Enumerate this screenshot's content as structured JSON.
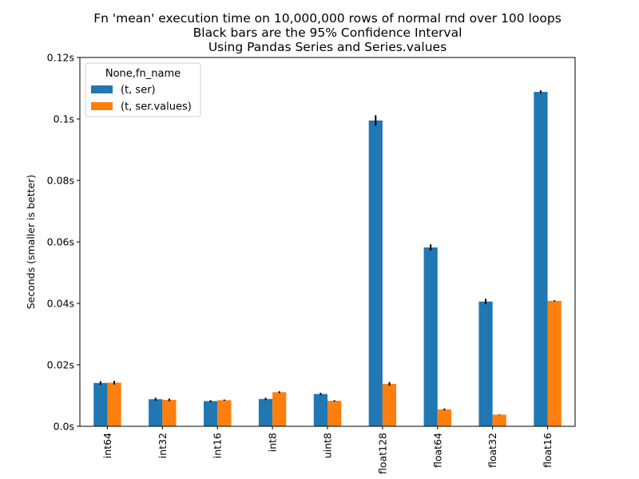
{
  "chart_data": {
    "type": "bar",
    "title_lines": [
      "Fn 'mean' execution time on 10,000,000 rows of normal rnd over 100 loops",
      "Black bars are the 95% Confidence Interval",
      "Using Pandas Series and Series.values"
    ],
    "xlabel": "",
    "ylabel": "Seconds (smaller is better)",
    "ylim": [
      0,
      0.12
    ],
    "yticks": [
      {
        "value": 0,
        "label": "0.0s"
      },
      {
        "value": 0.02,
        "label": "0.02s"
      },
      {
        "value": 0.04,
        "label": "0.04s"
      },
      {
        "value": 0.06,
        "label": "0.06s"
      },
      {
        "value": 0.08,
        "label": "0.08s"
      },
      {
        "value": 0.1,
        "label": "0.1s"
      },
      {
        "value": 0.12,
        "label": "0.12s"
      }
    ],
    "categories": [
      "int64",
      "int32",
      "int16",
      "int8",
      "uint8",
      "float128",
      "float64",
      "float32",
      "float16"
    ],
    "legend": {
      "title": "None,fn_name",
      "position": "top-left"
    },
    "grid": false,
    "series": [
      {
        "name": "(t, ser)",
        "color": "#1f77b4",
        "values": [
          0.0141,
          0.0088,
          0.0082,
          0.0089,
          0.0105,
          0.0995,
          0.0582,
          0.0406,
          0.1088
        ],
        "errors": [
          0.0006,
          0.0005,
          0.0003,
          0.0004,
          0.0004,
          0.0017,
          0.001,
          0.0009,
          0.0005
        ]
      },
      {
        "name": "(t, ser.values)",
        "color": "#ff7f0e",
        "values": [
          0.0142,
          0.0086,
          0.0085,
          0.0111,
          0.0083,
          0.0138,
          0.0055,
          0.0038,
          0.0408
        ],
        "errors": [
          0.0006,
          0.0004,
          0.0002,
          0.0003,
          0.0002,
          0.0006,
          0.0003,
          0.0001,
          0.0002
        ]
      }
    ]
  }
}
